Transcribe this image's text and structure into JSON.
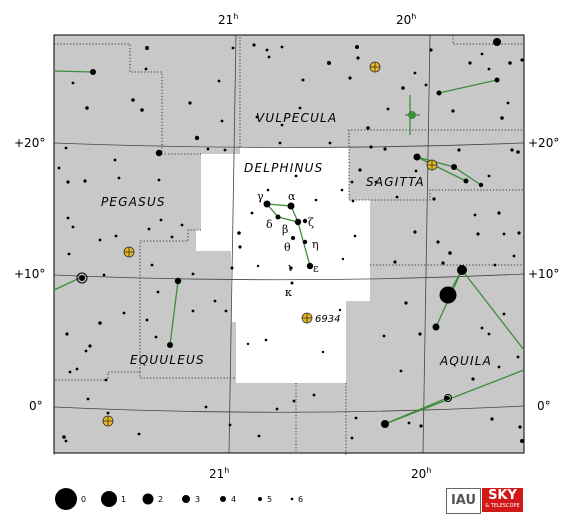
{
  "constellations": {
    "vulpecula": "VULPECULA",
    "delphinus": "DELPHINUS",
    "sagitta": "SAGITTA",
    "pegasus": "PEGASUS",
    "equuleus": "EQUULEUS",
    "aquila": "AQUILA"
  },
  "ra_labels": {
    "top_21": "21",
    "top_20": "20",
    "bottom_21": "21",
    "bottom_20": "20",
    "hour_suffix": "h"
  },
  "dec_labels": {
    "p20_left": "+20°",
    "p20_right": "+20°",
    "p10_left": "+10°",
    "p10_right": "+10°",
    "zero_left": "0°",
    "zero_right": "0°"
  },
  "greek": {
    "alpha": "α",
    "beta": "β",
    "gamma": "γ",
    "delta": "δ",
    "epsilon": "ε",
    "zeta": "ζ",
    "eta": "η",
    "theta": "θ",
    "iota": "ι",
    "kappa": "κ"
  },
  "objects": {
    "ngc6934": "6934"
  },
  "magnitude_legend": [
    "0",
    "1",
    "2",
    "3",
    "4",
    "5",
    "6"
  ],
  "logos": {
    "iau": "IAU",
    "sky": "SKY",
    "sky_sub": "& TELESCOPE"
  },
  "colors": {
    "background": "#c8c8c8",
    "highlight": "#ffffff",
    "stick_figure": "#3c8c3c",
    "cluster": "#e8b820"
  }
}
